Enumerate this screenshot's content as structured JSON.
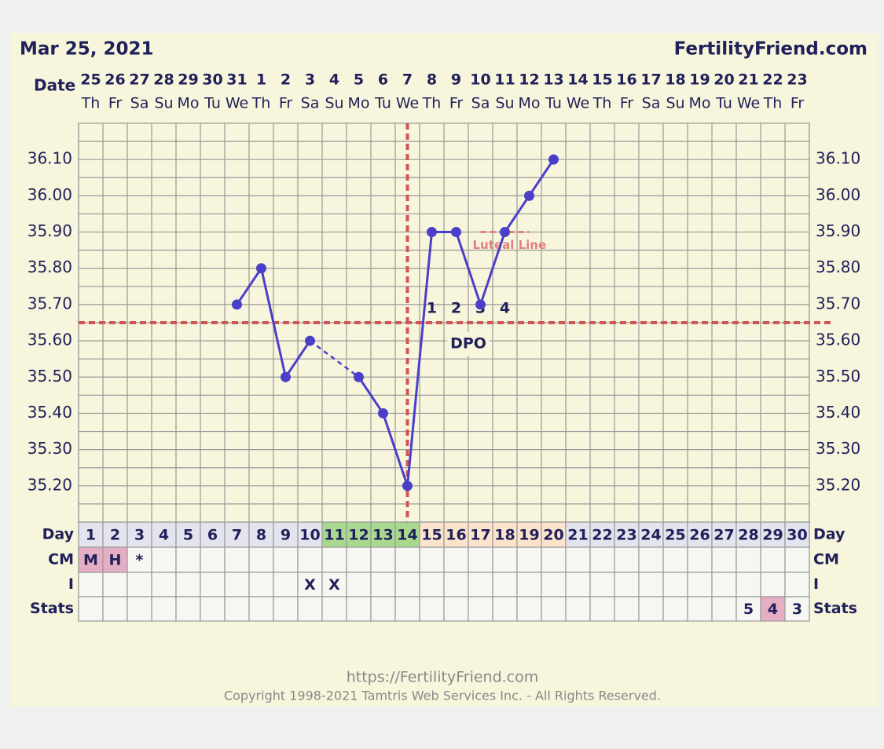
{
  "header": {
    "date": "Mar 25, 2021",
    "site": "FertilityFriend.com"
  },
  "chart_data": {
    "type": "line",
    "date_label": "Date",
    "dates": [
      25,
      26,
      27,
      28,
      29,
      30,
      31,
      1,
      2,
      3,
      4,
      5,
      6,
      7,
      8,
      9,
      10,
      11,
      12,
      13,
      14,
      15,
      16,
      17,
      18,
      19,
      20,
      21,
      22,
      23
    ],
    "weekdays": [
      "Th",
      "Fr",
      "Sa",
      "Su",
      "Mo",
      "Tu",
      "We",
      "Th",
      "Fr",
      "Sa",
      "Su",
      "Mo",
      "Tu",
      "We",
      "Th",
      "Fr",
      "Sa",
      "Su",
      "Mo",
      "Tu",
      "We",
      "Th",
      "Fr",
      "Sa",
      "Su",
      "Mo",
      "Tu",
      "We",
      "Th",
      "Fr"
    ],
    "categories": [
      1,
      2,
      3,
      4,
      5,
      6,
      7,
      8,
      9,
      10,
      11,
      12,
      13,
      14,
      15,
      16,
      17,
      18,
      19,
      20,
      21,
      22,
      23,
      24,
      25,
      26,
      27,
      28,
      29,
      30
    ],
    "values": [
      null,
      null,
      null,
      null,
      null,
      null,
      35.7,
      35.8,
      35.5,
      35.6,
      null,
      35.5,
      35.4,
      35.2,
      35.9,
      35.9,
      35.7,
      35.9,
      36.0,
      36.1,
      null,
      null,
      null,
      null,
      null,
      null,
      null,
      null,
      null,
      null
    ],
    "color": "#4b3fc9",
    "ylim": [
      35.1,
      36.2
    ],
    "yticks": [
      {
        "value": 35.2,
        "label": "35.20"
      },
      {
        "value": 35.3,
        "label": "35.30"
      },
      {
        "value": 35.4,
        "label": "35.40"
      },
      {
        "value": 35.5,
        "label": "35.50"
      },
      {
        "value": 35.6,
        "label": "35.60"
      },
      {
        "value": 35.7,
        "label": "35.70"
      },
      {
        "value": 35.8,
        "label": "35.80"
      },
      {
        "value": 35.9,
        "label": "35.90"
      },
      {
        "value": 36.0,
        "label": "36.00"
      },
      {
        "value": 36.1,
        "label": "36.10"
      }
    ],
    "grid": true,
    "coverline": 35.65,
    "ovulation_day": 14,
    "luteal_line": {
      "label": "Luteal Line",
      "value": 35.9,
      "from_day": 17,
      "to_day": 19
    },
    "dpo": {
      "label": "DPO",
      "values": [
        1,
        2,
        3,
        4
      ],
      "days": [
        15,
        16,
        17,
        18
      ]
    },
    "row_labels": [
      "Day",
      "CM",
      "I",
      "Stats"
    ],
    "fertile_days": [
      11,
      12,
      13,
      14
    ],
    "post_ovulation_days": [
      15,
      16,
      17,
      18,
      19,
      20
    ],
    "cm": [
      "M",
      "H",
      "*",
      null,
      null,
      null,
      null,
      null,
      null,
      null,
      null,
      null,
      null,
      null,
      null,
      null,
      null,
      null,
      null,
      null,
      null,
      null,
      null,
      null,
      null,
      null,
      null,
      null,
      null,
      null
    ],
    "cm_highlight_days": [
      1,
      2
    ],
    "intercourse": [
      null,
      null,
      null,
      null,
      null,
      null,
      null,
      null,
      null,
      "X",
      "X",
      null,
      null,
      null,
      null,
      null,
      null,
      null,
      null,
      null,
      null,
      null,
      null,
      null,
      null,
      null,
      null,
      null,
      null,
      null
    ],
    "stats": [
      null,
      null,
      null,
      null,
      null,
      null,
      null,
      null,
      null,
      null,
      null,
      null,
      null,
      null,
      null,
      null,
      null,
      null,
      null,
      null,
      null,
      null,
      null,
      null,
      null,
      null,
      null,
      5,
      4,
      3
    ],
    "stats_highlight_days": [
      29
    ]
  },
  "footer": {
    "url": "https://FertilityFriend.com",
    "copyright": "Copyright 1998-2021 Tamtris Web Services Inc. - All Rights Reserved."
  }
}
